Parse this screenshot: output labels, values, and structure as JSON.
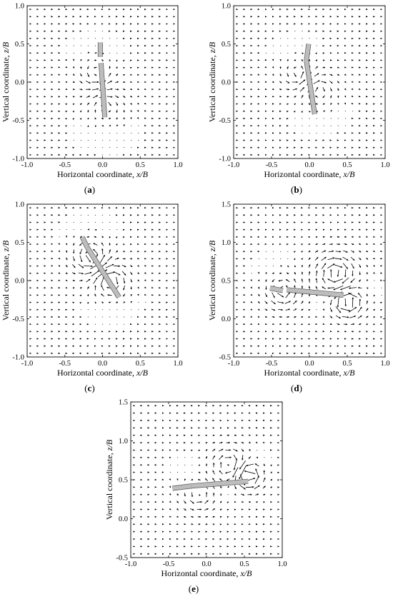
{
  "chart_data": [
    {
      "type": "quiver",
      "caption": "(a)",
      "xlabel_text": "Horizontal coordinate, ",
      "xlabel_var": "x/B",
      "ylabel_text": "Vertical coordinate, ",
      "ylabel_var": "z/B",
      "xlim": [
        -1.0,
        1.0
      ],
      "ylim": [
        -1.0,
        1.0
      ],
      "xticks": [
        "-1.0",
        "-0.5",
        "0.0",
        "0.5",
        "1.0"
      ],
      "yticks": [
        "-1.0",
        "-0.5",
        "0.0",
        "0.5",
        "1.0"
      ],
      "plate_segments": [
        [
          [
            -0.03,
            0.52
          ],
          [
            -0.03,
            0.33
          ]
        ],
        [
          [
            -0.02,
            0.25
          ],
          [
            0.03,
            -0.46
          ]
        ]
      ],
      "vortices": [
        [
          -0.08,
          0.1,
          0.06,
          0.3
        ],
        [
          0.05,
          -0.3,
          -0.05,
          0.35
        ]
      ]
    },
    {
      "type": "quiver",
      "caption": "(b)",
      "xlabel_text": "Horizontal coordinate, ",
      "xlabel_var": "x/B",
      "ylabel_text": "Vertical coordinate, ",
      "ylabel_var": "z/B",
      "xlim": [
        -1.0,
        1.0
      ],
      "ylim": [
        -1.0,
        1.0
      ],
      "xticks": [
        "-1.0",
        "-0.5",
        "0.0",
        "0.5",
        "1.0"
      ],
      "yticks": [
        "-1.0",
        "-0.5",
        "0.0",
        "0.5",
        "1.0"
      ],
      "plate_segments": [
        [
          [
            -0.01,
            0.5
          ],
          [
            -0.04,
            0.28
          ]
        ],
        [
          [
            -0.04,
            0.28
          ],
          [
            0.07,
            -0.42
          ]
        ]
      ],
      "vortices": [
        [
          -0.15,
          0.1,
          0.06,
          0.3
        ],
        [
          0.12,
          -0.1,
          -0.06,
          0.32
        ]
      ]
    },
    {
      "type": "quiver",
      "caption": "(c)",
      "xlabel_text": "Horizontal coordinate, ",
      "xlabel_var": "x/B",
      "ylabel_text": "Vertical coordinate, ",
      "ylabel_var": "z/B",
      "xlim": [
        -1.0,
        1.0
      ],
      "ylim": [
        -1.0,
        1.0
      ],
      "xticks": [
        "-1.0",
        "-0.5",
        "0.0",
        "0.5",
        "1.0"
      ],
      "yticks": [
        "-1.0",
        "-0.5",
        "0.0",
        "0.5",
        "1.0"
      ],
      "plate_segments": [
        [
          [
            -0.27,
            0.57
          ],
          [
            -0.2,
            0.43
          ]
        ],
        [
          [
            -0.2,
            0.43
          ],
          [
            0.22,
            -0.22
          ]
        ]
      ],
      "vortices": [
        [
          -0.15,
          0.3,
          0.1,
          0.3
        ],
        [
          0.1,
          0.0,
          -0.1,
          0.3
        ]
      ]
    },
    {
      "type": "quiver",
      "caption": "(d)",
      "xlabel_text": "Horizontal coordinate, ",
      "xlabel_var": "x/B",
      "ylabel_text": "Vertical coordinate, ",
      "ylabel_var": "z/B",
      "xlim": [
        -1.0,
        1.0
      ],
      "ylim": [
        -0.5,
        1.5
      ],
      "xticks": [
        "-1.0",
        "-0.5",
        "0.0",
        "0.5",
        "1.0"
      ],
      "yticks": [
        "-0.5",
        "0.0",
        "0.5",
        "1.0",
        "1.5"
      ],
      "plate_segments": [
        [
          [
            -0.52,
            0.4
          ],
          [
            -0.35,
            0.37
          ]
        ],
        [
          [
            -0.3,
            0.38
          ],
          [
            0.45,
            0.31
          ]
        ]
      ],
      "vortices": [
        [
          -0.35,
          0.35,
          0.08,
          0.3
        ],
        [
          0.35,
          0.6,
          -0.1,
          0.35
        ],
        [
          0.5,
          0.22,
          0.14,
          0.25
        ]
      ]
    },
    {
      "type": "quiver",
      "caption": "(e)",
      "xlabel_text": "Horizontal coordinate, ",
      "xlabel_var": "x/B",
      "ylabel_text": "Vertical coordinate, ",
      "ylabel_var": "z/B",
      "xlim": [
        -1.0,
        1.0
      ],
      "ylim": [
        -0.5,
        1.5
      ],
      "xticks": [
        "-1.0",
        "-0.5",
        "0.0",
        "0.5",
        "1.0"
      ],
      "yticks": [
        "-0.5",
        "0.0",
        "0.5",
        "1.0",
        "1.5"
      ],
      "plate_segments": [
        [
          [
            -0.45,
            0.39
          ],
          [
            -0.2,
            0.42
          ]
        ],
        [
          [
            -0.2,
            0.42
          ],
          [
            0.55,
            0.48
          ]
        ]
      ],
      "vortices": [
        [
          0.55,
          0.55,
          0.15,
          0.22
        ],
        [
          0.3,
          0.7,
          -0.08,
          0.3
        ],
        [
          -0.1,
          0.3,
          0.06,
          0.3
        ]
      ]
    }
  ]
}
